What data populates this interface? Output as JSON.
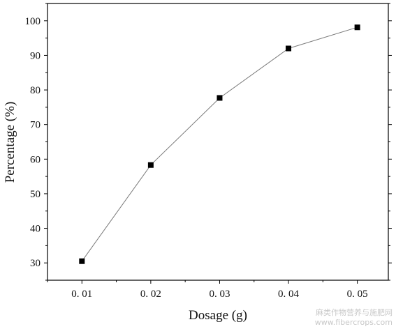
{
  "chart_data": {
    "type": "line",
    "title": "",
    "xlabel": "Dosage (g)",
    "ylabel": "Percentage (%)",
    "x": [
      0.01,
      0.02,
      0.03,
      0.04,
      0.05
    ],
    "x_tick_labels": [
      "0. 01",
      "0. 02",
      "0. 03",
      "0. 04",
      "0. 05"
    ],
    "series": [
      {
        "values": [
          30.5,
          58.3,
          77.7,
          92.0,
          98.1
        ]
      }
    ],
    "xlim": [
      0.005,
      0.0545
    ],
    "ylim": [
      25,
      105
    ],
    "y_ticks": [
      30,
      40,
      50,
      60,
      70,
      80,
      90,
      100
    ],
    "marker": "square",
    "line_color": "#7a7a7a",
    "marker_color": "#000000",
    "grid": false,
    "legend": "none"
  },
  "watermark": {
    "line1": "麻类作物营养与施肥网",
    "line2": "www.fibercrops.com"
  }
}
